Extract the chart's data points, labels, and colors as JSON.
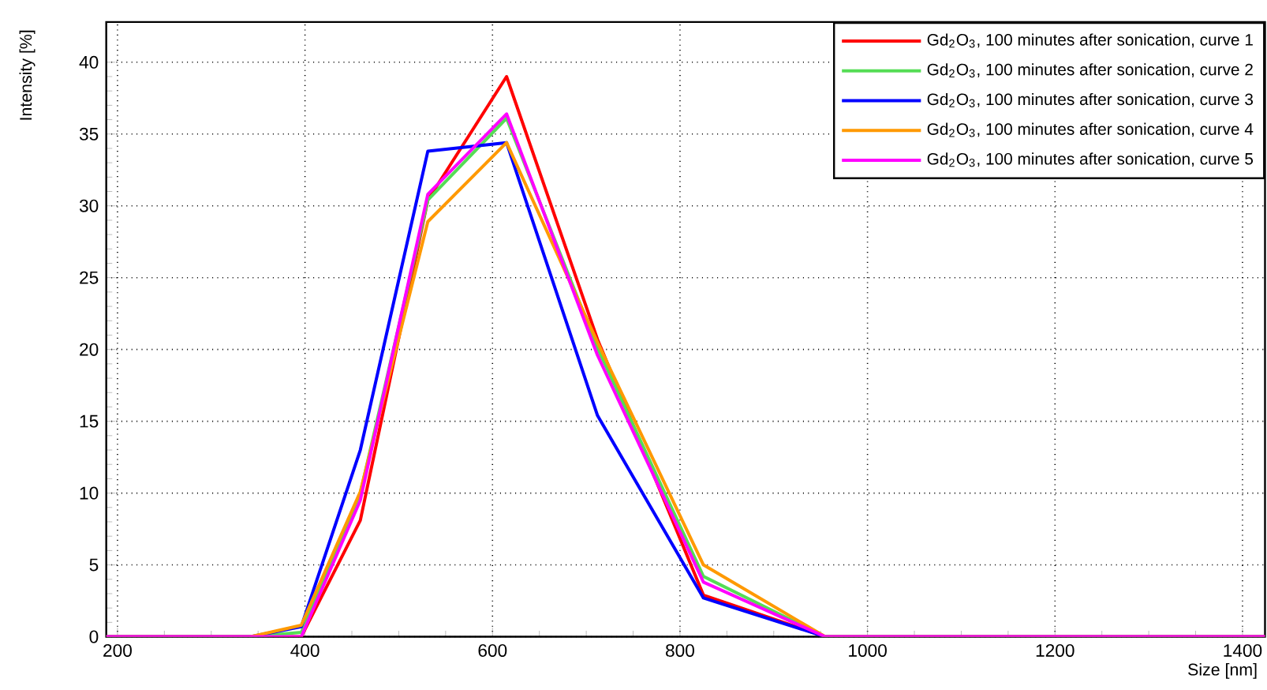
{
  "chart_data": {
    "type": "line",
    "xlabel": "Size [nm]",
    "ylabel": "Intensity [%]",
    "x": [
      188,
      342,
      396,
      459,
      531,
      615,
      712,
      825,
      955,
      1424
    ],
    "series": [
      {
        "name": "Gd$_{2}$O$_{3}$, 100 minutes after sonication, curve 1",
        "color": "#ff0000",
        "values": [
          0,
          0,
          0,
          8.1,
          30.4,
          39.0,
          20.7,
          2.9,
          0,
          0
        ]
      },
      {
        "name": "Gd$_{2}$O$_{3}$, 100 minutes after sonication, curve 2",
        "color": "#55dd55",
        "values": [
          0,
          0,
          0.3,
          10.0,
          30.4,
          36.1,
          20.1,
          4.2,
          0,
          0
        ]
      },
      {
        "name": "Gd$_{2}$O$_{3}$, 100 minutes after sonication, curve 3",
        "color": "#0000ff",
        "values": [
          0,
          0,
          0.7,
          13.0,
          33.8,
          34.4,
          15.4,
          2.7,
          0,
          0
        ]
      },
      {
        "name": "Gd$_{2}$O$_{3}$, 100 minutes after sonication, curve 4",
        "color": "#ff9900",
        "values": [
          0,
          0,
          0.8,
          10.1,
          28.9,
          34.4,
          20.5,
          5.0,
          0,
          0
        ]
      },
      {
        "name": "Gd$_{2}$O$_{3}$, 100 minutes after sonication, curve 5",
        "color": "#ff00ff",
        "values": [
          0,
          0,
          0,
          9.5,
          30.8,
          36.4,
          19.6,
          3.8,
          0,
          0
        ]
      }
    ],
    "xlim": [
      188,
      1424
    ],
    "ylim": [
      0,
      42.8
    ],
    "xticks": [
      200,
      400,
      600,
      800,
      1000,
      1200,
      1400
    ],
    "yticks": [
      0,
      5,
      10,
      15,
      20,
      25,
      30,
      35,
      40
    ],
    "grid": true,
    "legend": "top right"
  }
}
